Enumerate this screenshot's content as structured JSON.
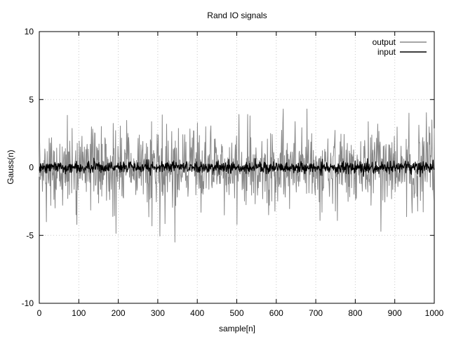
{
  "chart_data": {
    "type": "line",
    "title": "Rand IO signals",
    "xlabel": "sample[n]",
    "ylabel": "Gauss(n)",
    "xlim": [
      0,
      1000
    ],
    "ylim": [
      -10,
      10
    ],
    "x_ticks": [
      0,
      100,
      200,
      300,
      400,
      500,
      600,
      700,
      800,
      900,
      1000
    ],
    "y_ticks": [
      -10,
      -5,
      0,
      5,
      10
    ],
    "grid": true,
    "legend_position": "top-right",
    "sample_count": 1000,
    "series": [
      {
        "name": "output",
        "color": "#888888",
        "distribution": "gaussian",
        "mean": 0,
        "std": 1.4,
        "observed_min": -5.5,
        "observed_max": 4.3,
        "notable_extremes": [
          {
            "x": 343,
            "y": -5.5
          },
          {
            "x": 677,
            "y": 4.3
          },
          {
            "x": 505,
            "y": 3.9
          },
          {
            "x": 527,
            "y": 3.9
          },
          {
            "x": 285,
            "y": -4.3
          },
          {
            "x": 500,
            "y": -4.2
          },
          {
            "x": 95,
            "y": -4.2
          },
          {
            "x": 710,
            "y": -3.9
          },
          {
            "x": 18,
            "y": -4.0
          },
          {
            "x": 935,
            "y": 4.0
          },
          {
            "x": 993,
            "y": 3.5
          }
        ]
      },
      {
        "name": "input",
        "color": "#000000",
        "distribution": "gaussian",
        "mean": 0,
        "std": 0.22,
        "observed_min": -0.8,
        "observed_max": 0.8
      }
    ]
  }
}
